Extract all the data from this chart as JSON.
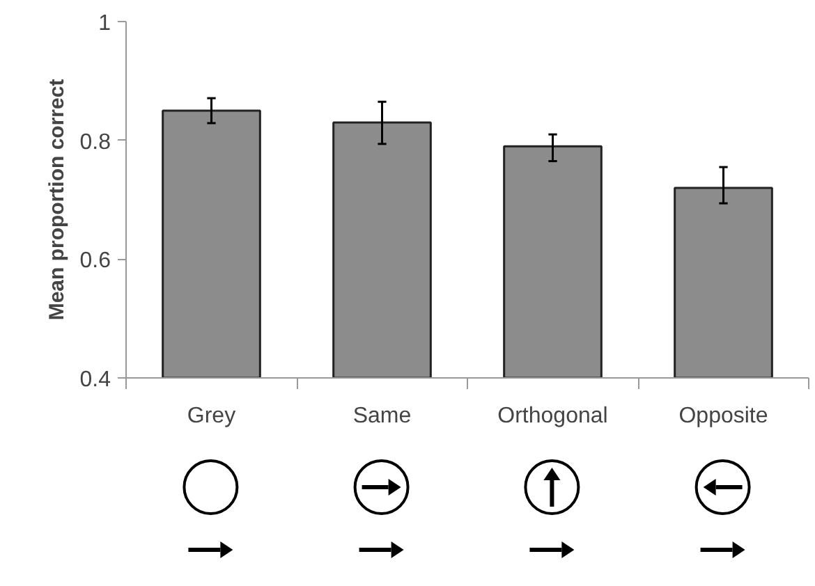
{
  "chart_data": {
    "type": "bar",
    "ylabel": "Mean proportion correct",
    "categories": [
      "Grey",
      "Same",
      "Orthogonal",
      "Opposite"
    ],
    "values": [
      0.85,
      0.83,
      0.79,
      0.72
    ],
    "errors": [
      [
        0.829,
        0.871
      ],
      [
        0.794,
        0.865
      ],
      [
        0.765,
        0.81
      ],
      [
        0.694,
        0.755
      ]
    ],
    "color": "#8c8c8c",
    "ylim": [
      0.4,
      1
    ],
    "yticks": [
      0.4,
      0.6,
      0.8,
      1
    ],
    "grid": false
  }
}
